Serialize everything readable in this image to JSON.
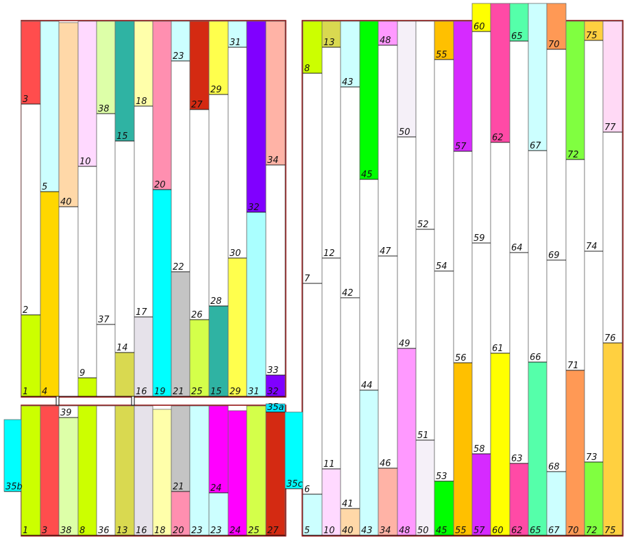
{
  "panel_outline_color": "#8b0000",
  "column_outline_color": "#6b6b6b",
  "columns": [
    {
      "segments": [
        {
          "label": "3",
          "color": "#ff4d4d"
        },
        {
          "label": "2",
          "color": "#ffffff"
        },
        {
          "label": "1",
          "color": "#ccff00"
        }
      ]
    },
    {
      "segments": [
        {
          "label": "5",
          "color": "#ccffff"
        },
        {
          "label": "4",
          "color": "#ffd700"
        }
      ]
    },
    {
      "segments": [
        {
          "label": "40",
          "color": "#ffd8a8"
        },
        {
          "label": "",
          "color": "#ffffff"
        }
      ]
    },
    {
      "segments": [
        {
          "label": "10",
          "color": "#ffd9ff"
        },
        {
          "label": "9",
          "color": "#ffffff"
        },
        {
          "label": "",
          "color": "#ccff00"
        }
      ]
    },
    {
      "segments": [
        {
          "label": "38",
          "color": "#ddffa8"
        },
        {
          "label": "37",
          "color": "#ffffff"
        },
        {
          "label": "",
          "color": "#ffffff"
        }
      ]
    },
    {
      "segments": [
        {
          "label": "15",
          "color": "#2fb3a3"
        },
        {
          "label": "14",
          "color": "#ffffff"
        },
        {
          "label": "",
          "color": "#d9d950"
        }
      ]
    },
    {
      "segments": [
        {
          "label": "18",
          "color": "#ffffaa"
        },
        {
          "label": "17",
          "color": "#ffffff"
        },
        {
          "label": "16",
          "color": "#e6e2ea"
        }
      ]
    },
    {
      "segments": [
        {
          "label": "20",
          "color": "#ff8fb0"
        },
        {
          "label": "19",
          "color": "#00ffff"
        }
      ]
    },
    {
      "segments": [
        {
          "label": "23",
          "color": "#ccffff"
        },
        {
          "label": "22",
          "color": "#ffffff"
        },
        {
          "label": "21",
          "color": "#c4c4c4"
        }
      ]
    },
    {
      "segments": [
        {
          "label": "27",
          "color": "#d42a12"
        },
        {
          "label": "26",
          "color": "#ffffff"
        },
        {
          "label": "25",
          "color": "#d4ff4a"
        }
      ]
    },
    {
      "segments": [
        {
          "label": "29",
          "color": "#ffff4d"
        },
        {
          "label": "28",
          "color": "#ffffff"
        },
        {
          "label": "15",
          "color": "#2fb3a3"
        }
      ]
    },
    {
      "segments": [
        {
          "label": "31",
          "color": "#ccffff"
        },
        {
          "label": "30",
          "color": "#ffffff"
        },
        {
          "label": "29",
          "color": "#ffff4d"
        }
      ]
    },
    {
      "segments": [
        {
          "label": "32",
          "color": "#8000ff"
        },
        {
          "label": "31",
          "color": "#aaffff"
        }
      ]
    },
    {
      "segments": [
        {
          "label": "34",
          "color": "#ffb3a6"
        },
        {
          "label": "33",
          "color": "#ffffff"
        },
        {
          "label": "32",
          "color": "#8000ff"
        }
      ]
    },
    {
      "segments": [
        {
          "label": "1",
          "color": "#ccff00"
        }
      ]
    },
    {
      "segments": [
        {
          "label": "3",
          "color": "#ff4d4d"
        }
      ]
    },
    {
      "segments": [
        {
          "label": "39",
          "color": "#ffffff"
        },
        {
          "label": "38",
          "color": "#ddffa8"
        }
      ]
    },
    {
      "segments": [
        {
          "label": "8",
          "color": "#ccff00"
        }
      ]
    },
    {
      "segments": [
        {
          "label": "36",
          "color": "#ffffff"
        }
      ]
    },
    {
      "segments": [
        {
          "label": "13",
          "color": "#d9d950"
        }
      ]
    },
    {
      "segments": [
        {
          "label": "16",
          "color": "#e6e2ea"
        }
      ]
    },
    {
      "segments": [
        {
          "label": "18",
          "color": "#ffffaa"
        }
      ]
    },
    {
      "segments": [
        {
          "label": "21",
          "color": "#c4c4c4"
        },
        {
          "label": "20",
          "color": "#ff8fb0"
        }
      ]
    },
    {
      "segments": [
        {
          "label": "23",
          "color": "#ccffff"
        }
      ]
    },
    {
      "segments": [
        {
          "label": "24",
          "color": "#ff00ff"
        },
        {
          "label": "23",
          "color": "#ccffff"
        }
      ]
    },
    {
      "segments": [
        {
          "label": "24",
          "color": "#ff00ff"
        }
      ]
    },
    {
      "segments": [
        {
          "label": "25",
          "color": "#d4ff4a"
        }
      ]
    },
    {
      "segments": [
        {
          "label": "35a",
          "color": "#00e5ff"
        },
        {
          "label": "27",
          "color": "#d42a12"
        }
      ]
    },
    {
      "segments": [
        {
          "label": "35b",
          "color": "#00ffff"
        }
      ]
    },
    {
      "segments": [
        {
          "label": "35c",
          "color": "#00ffff"
        }
      ]
    },
    {
      "segments": [
        {
          "label": "8",
          "color": "#ccff00"
        },
        {
          "label": "7",
          "color": "#ffffff"
        },
        {
          "label": "6",
          "color": "#ffffff"
        },
        {
          "label": "5",
          "color": "#ccffff"
        }
      ]
    },
    {
      "segments": [
        {
          "label": "13",
          "color": "#d9d950"
        },
        {
          "label": "12",
          "color": "#ffffff"
        },
        {
          "label": "11",
          "color": "#ffffff"
        },
        {
          "label": "10",
          "color": "#ffd9ff"
        }
      ]
    },
    {
      "segments": [
        {
          "label": "43",
          "color": "#ccffff"
        },
        {
          "label": "42",
          "color": "#ffffff"
        },
        {
          "label": "41",
          "color": "#ffffff"
        },
        {
          "label": "40",
          "color": "#ffd8a8"
        }
      ]
    },
    {
      "segments": [
        {
          "label": "45",
          "color": "#00ff00"
        },
        {
          "label": "44",
          "color": "#ffffff"
        },
        {
          "label": "43",
          "color": "#ccffff"
        }
      ]
    },
    {
      "segments": [
        {
          "label": "48",
          "color": "#ff99ff"
        },
        {
          "label": "47",
          "color": "#ffffff"
        },
        {
          "label": "46",
          "color": "#ffffff"
        },
        {
          "label": "34",
          "color": "#ffb3a6"
        }
      ]
    },
    {
      "segments": [
        {
          "label": "50",
          "color": "#f5f0f8"
        },
        {
          "label": "49",
          "color": "#ffffff"
        },
        {
          "label": "48",
          "color": "#ff99ff"
        }
      ]
    },
    {
      "segments": [
        {
          "label": "52",
          "color": "#ffffff"
        },
        {
          "label": "51",
          "color": "#ffffff"
        },
        {
          "label": "50",
          "color": "#f5f0f8"
        }
      ]
    },
    {
      "segments": [
        {
          "label": "55",
          "color": "#ffc000"
        },
        {
          "label": "54",
          "color": "#ffffff"
        },
        {
          "label": "53",
          "color": "#ffffff"
        },
        {
          "label": "45",
          "color": "#00ff00"
        }
      ]
    },
    {
      "segments": [
        {
          "label": "57",
          "color": "#d62aff"
        },
        {
          "label": "56",
          "color": "#ffffff"
        },
        {
          "label": "55",
          "color": "#ffc000"
        }
      ]
    },
    {
      "segments": [
        {
          "label": "60",
          "color": "#ffff00"
        },
        {
          "label": "59",
          "color": "#ffffff"
        },
        {
          "label": "58",
          "color": "#ffffff"
        },
        {
          "label": "57",
          "color": "#d62aff"
        }
      ]
    },
    {
      "segments": [
        {
          "label": "62",
          "color": "#ff4aa6"
        },
        {
          "label": "61",
          "color": "#ffffff"
        },
        {
          "label": "60",
          "color": "#ffff00"
        }
      ]
    },
    {
      "segments": [
        {
          "label": "65",
          "color": "#55ffaa"
        },
        {
          "label": "64",
          "color": "#ffffff"
        },
        {
          "label": "63",
          "color": "#ffffff"
        },
        {
          "label": "62",
          "color": "#ff4aa6"
        }
      ]
    },
    {
      "segments": [
        {
          "label": "67",
          "color": "#ccffff"
        },
        {
          "label": "66",
          "color": "#ffffff"
        },
        {
          "label": "65",
          "color": "#55ffaa"
        }
      ]
    },
    {
      "segments": [
        {
          "label": "70",
          "color": "#ff9955"
        },
        {
          "label": "69",
          "color": "#ffffff"
        },
        {
          "label": "68",
          "color": "#ffffff"
        },
        {
          "label": "67",
          "color": "#ccffff"
        }
      ]
    },
    {
      "segments": [
        {
          "label": "72",
          "color": "#80ff40"
        },
        {
          "label": "71",
          "color": "#ffffff"
        },
        {
          "label": "70",
          "color": "#ff9955"
        }
      ]
    },
    {
      "segments": [
        {
          "label": "75",
          "color": "#ffd040"
        },
        {
          "label": "74",
          "color": "#ffffff"
        },
        {
          "label": "73",
          "color": "#ffffff"
        },
        {
          "label": "72",
          "color": "#80ff40"
        }
      ]
    },
    {
      "segments": [
        {
          "label": "77",
          "color": "#ffd9f5"
        },
        {
          "label": "76",
          "color": "#ffffff"
        },
        {
          "label": "75",
          "color": "#ffd040"
        }
      ]
    }
  ]
}
